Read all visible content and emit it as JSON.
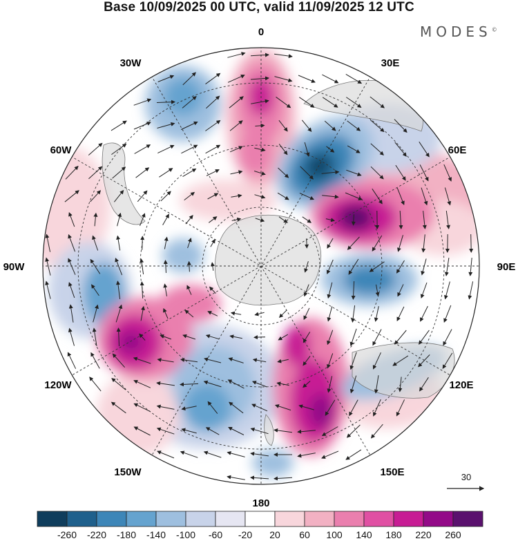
{
  "header": {
    "title": "Base 10/09/2025 00 UTC, valid 11/09/2025 12 UTC",
    "brand": "MODES",
    "brand_mark": "©"
  },
  "map": {
    "projection": "south-polar-stereographic",
    "longitude_labels": {
      "top": "0",
      "top_right": "30E",
      "upper_right": "60E",
      "right": "90E",
      "lower_right": "120E",
      "bottom_right": "150E",
      "bottom": "180",
      "bottom_left": "150W",
      "lower_left": "120W",
      "left": "90W",
      "upper_left": "60W",
      "top_left": "30W"
    },
    "reference_vector": "30",
    "field_colors": {
      "ocean": "#ffffff",
      "land": "#e4e4e4",
      "grid": "#333333",
      "wind": "#222222"
    }
  },
  "legend": {
    "labels": [
      "-260",
      "-220",
      "-180",
      "-140",
      "-100",
      "-60",
      "-20",
      "20",
      "60",
      "100",
      "140",
      "180",
      "220",
      "260"
    ],
    "colors": [
      "#0f3d5c",
      "#1f608c",
      "#3d86b8",
      "#65a3cf",
      "#9ebfdf",
      "#c8d3e9",
      "#e6e6f2",
      "#ffffff",
      "#f8d6dc",
      "#f2b1c3",
      "#ea7fae",
      "#e050a3",
      "#c71c94",
      "#930a88",
      "#5a116e"
    ]
  }
}
